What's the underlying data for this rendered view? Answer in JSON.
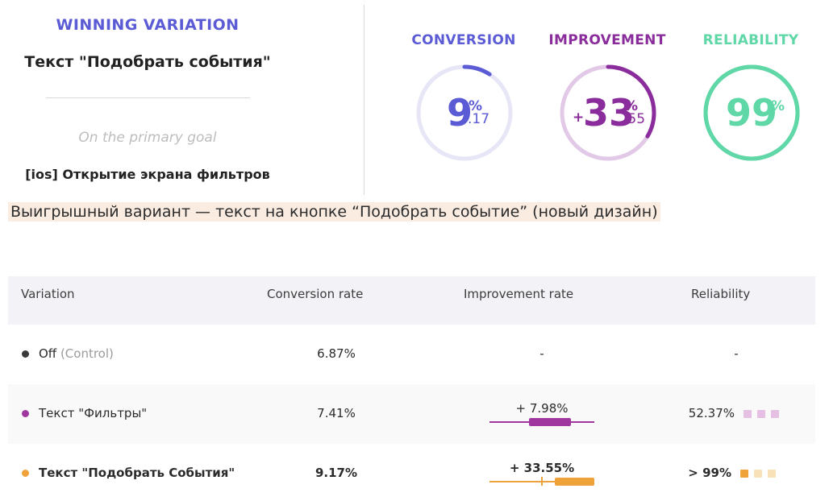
{
  "winner": {
    "heading": "WINNING VARIATION",
    "name": "Текст \"Подобрать события\"",
    "goal_caption": "On the primary goal",
    "goal_name": "[ios] Открытие экрана фильтров"
  },
  "metrics": {
    "conversion": {
      "title": "CONVERSION",
      "integer": "9",
      "unit": "%",
      "decimals": ".17",
      "color": "#5b5bd6",
      "track_color": "#e6e6f7",
      "fill_fraction": 0.0917
    },
    "improvement": {
      "title": "IMPROVEMENT",
      "sign": "+",
      "integer": "33",
      "unit": "%",
      "decimals": ".55",
      "color": "#8b2c9c",
      "track_color": "#e3c9e8",
      "fill_fraction": 0.3355
    },
    "reliability": {
      "title": "RELIABILITY",
      "integer": "99",
      "unit": "%",
      "color": "#5fd7a7",
      "track_color": "#5fd7a7",
      "fill_fraction": 0.99
    }
  },
  "note": "Выигрышный вариант — текст на кнопке “Подобрать событие” (новый дизайн)",
  "table": {
    "headers": {
      "variation": "Variation",
      "conversion": "Conversion rate",
      "improvement": "Improvement rate",
      "reliability": "Reliability"
    },
    "rows": [
      {
        "name": "Off",
        "suffix": "(Control)",
        "dot_color": "#3a3a3a",
        "conversion": "6.87%",
        "improvement": "-",
        "reliability": "-",
        "bold": false
      },
      {
        "name": "Текст \"Фильтры\"",
        "suffix": "",
        "dot_color": "#a0379f",
        "conversion": "7.41%",
        "improvement": "+ 7.98%",
        "reliability": "52.37%",
        "bold": false,
        "accent": "#a0379f",
        "square_colors": [
          "#e6c0e3",
          "#e6c0e3",
          "#e6c0e3"
        ]
      },
      {
        "name": "Текст \"Подобрать События\"",
        "suffix": "",
        "dot_color": "#f0a23a",
        "conversion": "9.17%",
        "improvement": "+ 33.55%",
        "reliability": "> 99%",
        "bold": true,
        "accent": "#f0a23a",
        "square_colors": [
          "#f0a23a",
          "#f8e1b8",
          "#f8e1b8"
        ]
      }
    ]
  }
}
